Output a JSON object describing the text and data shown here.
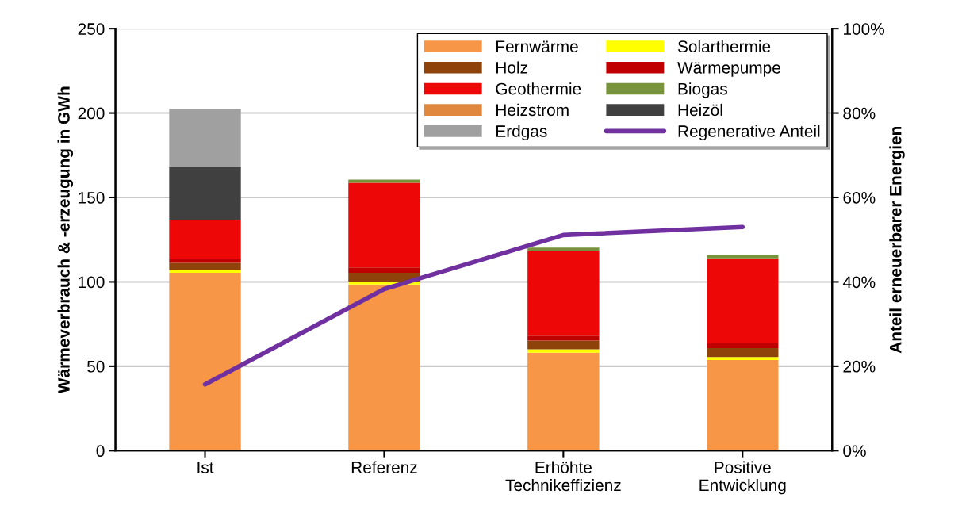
{
  "chart_data": {
    "type": "bar",
    "stacked": true,
    "categories": [
      "Ist",
      "Referenz",
      "Erhöhte\nTechnikeffizienz",
      "Positive\nEntwicklung"
    ],
    "ylabel": "Wärmeverbrauch & -erzeugung in GWh",
    "y2label": "Anteil erneuerbarer Energien",
    "ylim": [
      0,
      250
    ],
    "yticks": [
      0,
      50,
      100,
      150,
      200,
      250
    ],
    "y2lim": [
      0,
      100
    ],
    "y2ticks": [
      {
        "value": 0,
        "label": "0%"
      },
      {
        "value": 20,
        "label": "20%"
      },
      {
        "value": 40,
        "label": "40%"
      },
      {
        "value": 60,
        "label": "60%"
      },
      {
        "value": 80,
        "label": "80%"
      },
      {
        "value": 100,
        "label": "100%"
      }
    ],
    "grid": "y",
    "legend": "top right",
    "series": [
      {
        "name": "Fernwärme",
        "color": "#f79646",
        "values": [
          105.4,
          98.5,
          58.1,
          53.7
        ]
      },
      {
        "name": "Solarthermie",
        "color": "#ffff00",
        "values": [
          1.4,
          1.7,
          1.9,
          1.8
        ]
      },
      {
        "name": "Holz",
        "color": "#8e430a",
        "values": [
          4.4,
          5.2,
          5.2,
          5.3
        ]
      },
      {
        "name": "Wärmepumpe",
        "color": "#c00000",
        "values": [
          2.5,
          3.2,
          2.9,
          3.0
        ]
      },
      {
        "name": "Geothermie",
        "color": "#ee0707",
        "values": [
          23.0,
          50.1,
          50.2,
          50.1
        ]
      },
      {
        "name": "Biogas",
        "color": "#77933c",
        "values": [
          0,
          1.9,
          2.0,
          2.0
        ]
      },
      {
        "name": "Heizstrom",
        "color": "#e0883e",
        "values": [
          0,
          0,
          0,
          0
        ]
      },
      {
        "name": "Heizöl",
        "color": "#404040",
        "values": [
          31.1,
          0,
          0,
          0
        ]
      },
      {
        "name": "Erdgas",
        "color": "#a0a0a0",
        "values": [
          34.7,
          0,
          0,
          0
        ]
      },
      {
        "name": "Regenerative Anteil",
        "type": "line",
        "axis": "y2",
        "color": "#7030a0",
        "line_style": "solid",
        "marker": "none",
        "values": [
          15.7,
          38.3,
          51.1,
          53.0
        ]
      }
    ]
  }
}
